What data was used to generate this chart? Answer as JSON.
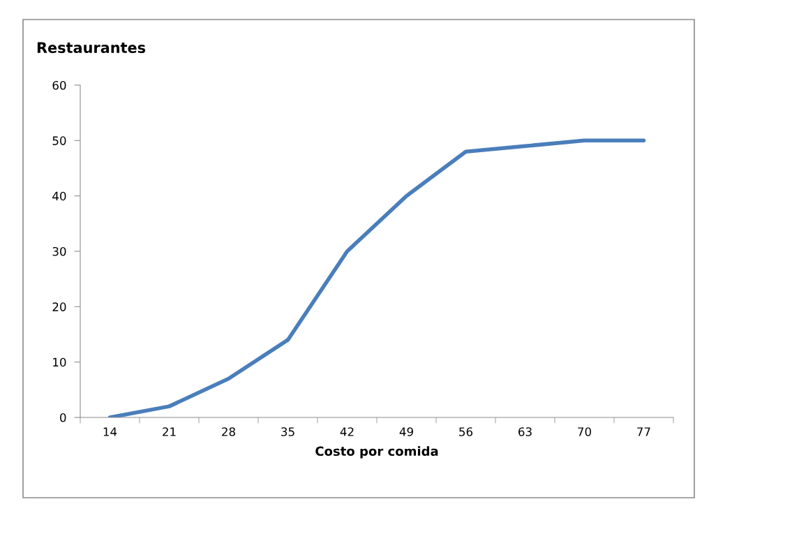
{
  "chart_data": {
    "type": "line",
    "title": "Restaurantes",
    "xlabel": "Costo por comida",
    "categories": [
      "14",
      "21",
      "28",
      "35",
      "42",
      "49",
      "56",
      "63",
      "70",
      "77"
    ],
    "series": [
      {
        "color": "#4a7ebb",
        "values": [
          0,
          2,
          7,
          14,
          30,
          40,
          48,
          49,
          50,
          50
        ]
      }
    ],
    "ylim": [
      0,
      60
    ],
    "yticks": [
      0,
      10,
      20,
      30,
      40,
      50,
      60
    ],
    "grid": false,
    "legend": false,
    "marker": "none",
    "line_style": "solid"
  }
}
